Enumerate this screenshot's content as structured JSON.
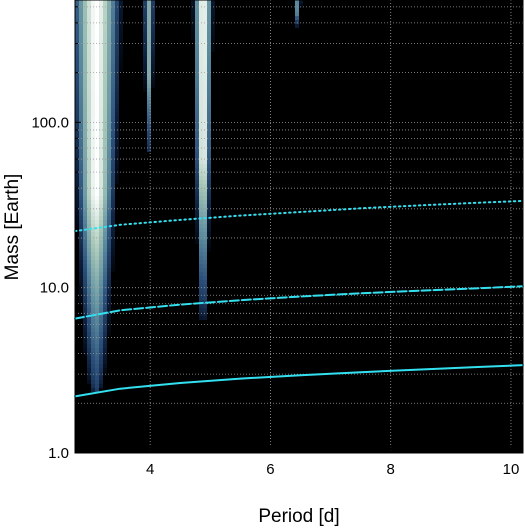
{
  "chart_data": {
    "type": "heatmap",
    "title": "",
    "xlabel": "Period [d]",
    "ylabel": "Mass [Earth]",
    "xlim": [
      2.75,
      10.2
    ],
    "ylim": [
      1.0,
      550
    ],
    "yscale": "log",
    "x_ticks": [
      4,
      6,
      8,
      10
    ],
    "x_tick_labels": [
      "4",
      "6",
      "8",
      "10"
    ],
    "y_ticks": [
      1.0,
      10.0,
      100.0
    ],
    "y_tick_labels": [
      "1.0",
      "10.0",
      "100.0"
    ],
    "grid": true,
    "background_color": "#000000",
    "colormap": [
      "#000000",
      "#0d1f3c",
      "#2b4f7a",
      "#5f8fa0",
      "#a9c8b8",
      "#ffffff"
    ],
    "series": [
      {
        "line_style": "solid",
        "color": "#33e0f0",
        "x": [
          2.75,
          3.5,
          4.5,
          5.5,
          6.5,
          7.5,
          8.5,
          9.5,
          10.2
        ],
        "y": [
          2.2,
          2.45,
          2.65,
          2.82,
          2.95,
          3.08,
          3.2,
          3.32,
          3.4
        ]
      },
      {
        "line_style": "dashed",
        "color": "#33e0f0",
        "x": [
          2.75,
          3.5,
          4.5,
          5.5,
          6.5,
          7.5,
          8.5,
          9.5,
          10.2
        ],
        "y": [
          6.5,
          7.3,
          7.9,
          8.4,
          8.85,
          9.25,
          9.6,
          9.95,
          10.2
        ]
      },
      {
        "line_style": "dotted",
        "color": "#33e0f0",
        "x": [
          2.75,
          3.5,
          4.5,
          5.5,
          6.5,
          7.5,
          8.5,
          9.5,
          10.2
        ],
        "y": [
          22,
          24,
          25.7,
          27.3,
          28.7,
          30.2,
          31.5,
          32.7,
          33.5
        ]
      }
    ],
    "exclusion_regions": [
      {
        "x_center": 3.1,
        "half_width": 0.33,
        "y_min": 2.4,
        "y_top": 550,
        "peak": 1.0
      },
      {
        "x_center": 4.88,
        "half_width": 0.13,
        "y_min": 6.3,
        "y_top": 550,
        "peak": 1.0
      },
      {
        "x_center": 3.98,
        "half_width": 0.07,
        "y_min": 65,
        "y_top": 550,
        "peak": 0.7
      },
      {
        "x_center": 6.45,
        "half_width": 0.05,
        "y_min": 380,
        "y_top": 550,
        "peak": 0.6
      }
    ]
  }
}
